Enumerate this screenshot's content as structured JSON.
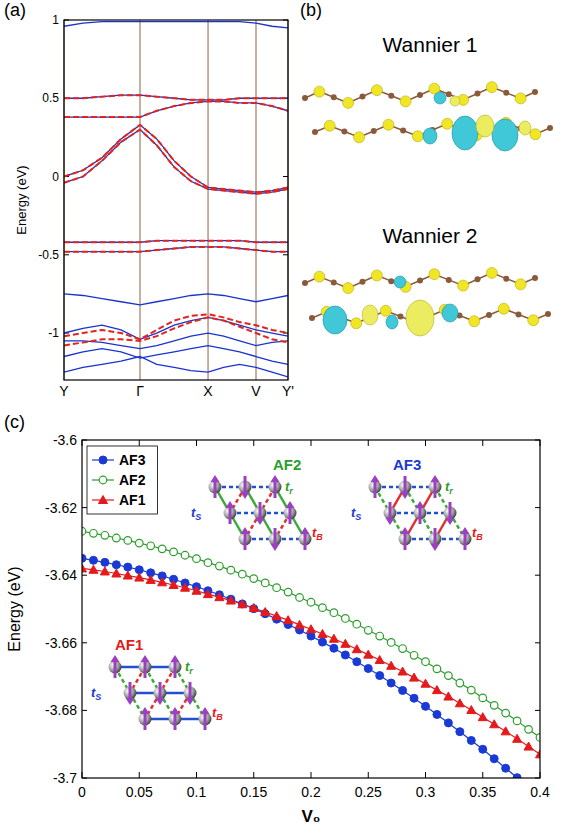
{
  "chart_data": [
    {
      "type": "line",
      "title": "(a)",
      "ylabel": "Energy (eV)",
      "x": [
        0,
        0.25,
        0.5,
        0.75,
        1,
        1.22,
        1.45,
        1.67,
        1.895,
        2.1,
        2.31,
        2.526,
        2.737,
        2.947
      ],
      "xlim": [
        0,
        2.947
      ],
      "xticks": [
        {
          "value": 0,
          "label": "Y"
        },
        {
          "value": 1,
          "label": "Γ"
        },
        {
          "value": 1.895,
          "label": "X"
        },
        {
          "value": 2.526,
          "label": "V"
        },
        {
          "value": 2.947,
          "label": "Y'"
        }
      ],
      "ylim": [
        -1.3,
        1
      ],
      "yticks": [
        -1,
        -0.5,
        0,
        0.5,
        1
      ],
      "grid": true,
      "series": [
        {
          "color": "#1a33cc",
          "line_style": "solid",
          "values": [
            0.96,
            0.98,
            0.99,
            0.99,
            0.99,
            0.99,
            0.99,
            0.99,
            0.99,
            0.99,
            0.99,
            0.98,
            0.96,
            0.95
          ]
        },
        {
          "color": "#1a33cc",
          "line_style": "solid",
          "values": [
            0.5,
            0.5,
            0.51,
            0.52,
            0.52,
            0.51,
            0.5,
            0.49,
            0.49,
            0.49,
            0.5,
            0.5,
            0.5,
            0.5
          ]
        },
        {
          "color": "#1a33cc",
          "line_style": "solid",
          "values": [
            0.38,
            0.38,
            0.38,
            0.38,
            0.38,
            0.42,
            0.45,
            0.47,
            0.48,
            0.48,
            0.47,
            0.47,
            0.45,
            0.42
          ]
        },
        {
          "color": "#1a33cc",
          "line_style": "solid",
          "values": [
            0.0,
            0.04,
            0.12,
            0.24,
            0.33,
            0.24,
            0.1,
            0.0,
            -0.07,
            -0.08,
            -0.09,
            -0.1,
            -0.09,
            -0.07
          ]
        },
        {
          "color": "#1a33cc",
          "line_style": "solid",
          "values": [
            -0.04,
            0.0,
            0.1,
            0.22,
            0.3,
            0.2,
            0.06,
            -0.03,
            -0.08,
            -0.09,
            -0.1,
            -0.11,
            -0.1,
            -0.08
          ]
        },
        {
          "color": "#1a33cc",
          "line_style": "solid",
          "values": [
            -0.42,
            -0.42,
            -0.42,
            -0.42,
            -0.42,
            -0.41,
            -0.41,
            -0.41,
            -0.41,
            -0.41,
            -0.41,
            -0.42,
            -0.42,
            -0.42
          ]
        },
        {
          "color": "#1a33cc",
          "line_style": "solid",
          "values": [
            -0.48,
            -0.48,
            -0.48,
            -0.48,
            -0.48,
            -0.47,
            -0.46,
            -0.45,
            -0.45,
            -0.45,
            -0.46,
            -0.47,
            -0.48,
            -0.48
          ]
        },
        {
          "color": "#1a33cc",
          "line_style": "solid",
          "values": [
            -0.75,
            -0.76,
            -0.78,
            -0.8,
            -0.82,
            -0.8,
            -0.78,
            -0.76,
            -0.75,
            -0.76,
            -0.78,
            -0.8,
            -0.78,
            -0.76
          ]
        },
        {
          "color": "#1a33cc",
          "line_style": "solid",
          "values": [
            -1.0,
            -0.97,
            -0.95,
            -0.98,
            -1.04,
            -1.0,
            -0.95,
            -0.92,
            -0.9,
            -0.92,
            -0.95,
            -0.98,
            -1.0,
            -1.02
          ]
        },
        {
          "color": "#1a33cc",
          "line_style": "solid",
          "values": [
            -1.05,
            -1.05,
            -1.06,
            -1.08,
            -1.1,
            -1.08,
            -1.05,
            -1.02,
            -1.0,
            -1.02,
            -1.05,
            -1.08,
            -1.06,
            -1.05
          ]
        },
        {
          "color": "#1a33cc",
          "line_style": "solid",
          "values": [
            -1.15,
            -1.12,
            -1.1,
            -1.12,
            -1.16,
            -1.14,
            -1.12,
            -1.1,
            -1.08,
            -1.1,
            -1.12,
            -1.15,
            -1.18,
            -1.2
          ]
        },
        {
          "color": "#1a33cc",
          "line_style": "solid",
          "values": [
            -1.25,
            -1.22,
            -1.2,
            -1.18,
            -1.15,
            -1.2,
            -1.22,
            -1.24,
            -1.25,
            -1.22,
            -1.2,
            -1.22,
            -1.25,
            -1.28
          ]
        },
        {
          "color": "#e3241b",
          "line_style": "dashed",
          "values": [
            0.5,
            0.5,
            0.51,
            0.52,
            0.52,
            0.51,
            0.5,
            0.49,
            0.49,
            0.49,
            0.5,
            0.5,
            0.5,
            0.5
          ]
        },
        {
          "color": "#e3241b",
          "line_style": "dashed",
          "values": [
            0.38,
            0.38,
            0.38,
            0.38,
            0.38,
            0.42,
            0.45,
            0.47,
            0.48,
            0.48,
            0.47,
            0.47,
            0.45,
            0.42
          ]
        },
        {
          "color": "#e3241b",
          "line_style": "dashed",
          "values": [
            0.0,
            0.04,
            0.12,
            0.24,
            0.33,
            0.24,
            0.1,
            0.0,
            -0.07,
            -0.08,
            -0.09,
            -0.1,
            -0.09,
            -0.07
          ]
        },
        {
          "color": "#e3241b",
          "line_style": "dashed",
          "values": [
            -0.04,
            0.0,
            0.1,
            0.22,
            0.3,
            0.2,
            0.06,
            -0.03,
            -0.08,
            -0.09,
            -0.1,
            -0.11,
            -0.1,
            -0.08
          ]
        },
        {
          "color": "#e3241b",
          "line_style": "dashed",
          "values": [
            -0.42,
            -0.42,
            -0.42,
            -0.42,
            -0.42,
            -0.41,
            -0.41,
            -0.41,
            -0.41,
            -0.41,
            -0.41,
            -0.42,
            -0.42,
            -0.42
          ]
        },
        {
          "color": "#e3241b",
          "line_style": "dashed",
          "values": [
            -0.48,
            -0.48,
            -0.48,
            -0.48,
            -0.48,
            -0.47,
            -0.46,
            -0.45,
            -0.45,
            -0.45,
            -0.46,
            -0.47,
            -0.48,
            -0.48
          ]
        },
        {
          "color": "#e3241b",
          "line_style": "dashed",
          "values": [
            -1.02,
            -1.0,
            -0.98,
            -1.0,
            -1.04,
            -0.98,
            -0.92,
            -0.89,
            -0.88,
            -0.9,
            -0.93,
            -0.95,
            -0.98,
            -1.0
          ]
        },
        {
          "color": "#e3241b",
          "line_style": "dashed",
          "values": [
            -1.08,
            -1.06,
            -1.04,
            -1.04,
            -1.05,
            -1.02,
            -0.97,
            -0.93,
            -0.9,
            -0.92,
            -0.96,
            -1.0,
            -1.04,
            -1.06
          ]
        }
      ]
    },
    {
      "type": "line",
      "title": "(c)",
      "xlabel": "V₀",
      "ylabel": "Energy (eV)",
      "x": [
        0,
        0.01,
        0.02,
        0.03,
        0.04,
        0.05,
        0.06,
        0.07,
        0.08,
        0.09,
        0.1,
        0.11,
        0.12,
        0.13,
        0.14,
        0.15,
        0.16,
        0.17,
        0.18,
        0.19,
        0.2,
        0.21,
        0.22,
        0.23,
        0.24,
        0.25,
        0.26,
        0.27,
        0.28,
        0.29,
        0.3,
        0.31,
        0.32,
        0.33,
        0.34,
        0.35,
        0.36,
        0.37,
        0.38,
        0.39,
        0.4
      ],
      "xlim": [
        0,
        0.4
      ],
      "xticks": [
        0,
        0.05,
        0.1,
        0.15,
        0.2,
        0.25,
        0.3,
        0.35,
        0.4
      ],
      "ylim": [
        -3.7,
        -3.6
      ],
      "yticks": [
        -3.7,
        -3.68,
        -3.66,
        -3.64,
        -3.62,
        -3.6
      ],
      "legend": "upper left",
      "series": [
        {
          "name": "AF3",
          "color": "#1a3ad6",
          "marker": "circle",
          "line_style": "solid",
          "values": [
            -3.635,
            -3.6356,
            -3.6362,
            -3.6369,
            -3.6376,
            -3.6384,
            -3.6393,
            -3.6402,
            -3.6412,
            -3.6423,
            -3.6434,
            -3.6446,
            -3.6458,
            -3.6471,
            -3.6485,
            -3.6499,
            -3.6514,
            -3.653,
            -3.6546,
            -3.6562,
            -3.658,
            -3.6598,
            -3.6616,
            -3.6636,
            -3.6656,
            -3.6676,
            -3.6697,
            -3.6719,
            -3.6741,
            -3.6764,
            -3.6788,
            -3.6812,
            -3.6837,
            -3.6863,
            -3.6889,
            -3.6915,
            -3.6943,
            -3.6971,
            -3.6999,
            null,
            null
          ]
        },
        {
          "name": "AF2",
          "color": "#2c9e2c",
          "marker": "open_circle",
          "line_style": "solid",
          "values": [
            -3.627,
            -3.6276,
            -3.6282,
            -3.629,
            -3.6297,
            -3.6305,
            -3.6313,
            -3.6322,
            -3.6331,
            -3.6341,
            -3.6351,
            -3.6363,
            -3.6373,
            -3.6385,
            -3.6397,
            -3.641,
            -3.6423,
            -3.6437,
            -3.645,
            -3.6466,
            -3.648,
            -3.6496,
            -3.6511,
            -3.6528,
            -3.6545,
            -3.6563,
            -3.658,
            -3.6599,
            -3.6617,
            -3.6637,
            -3.6656,
            -3.6677,
            -3.6697,
            -3.6719,
            -3.674,
            -3.6763,
            -3.6785,
            -3.6808,
            -3.6831,
            -3.6856,
            -3.688
          ]
        },
        {
          "name": "AF1",
          "color": "#e41a1c",
          "marker": "triangle",
          "line_style": "solid",
          "values": [
            -3.638,
            -3.6384,
            -3.6389,
            -3.6395,
            -3.6401,
            -3.6407,
            -3.6414,
            -3.6421,
            -3.6429,
            -3.6437,
            -3.6446,
            -3.6456,
            -3.6465,
            -3.6475,
            -3.6486,
            -3.6497,
            -3.6509,
            -3.6521,
            -3.6533,
            -3.6547,
            -3.656,
            -3.6574,
            -3.6588,
            -3.6603,
            -3.6619,
            -3.6635,
            -3.6651,
            -3.6668,
            -3.6685,
            -3.6703,
            -3.6721,
            -3.674,
            -3.6759,
            -3.6779,
            -3.6799,
            -3.682,
            -3.6841,
            -3.6862,
            -3.6884,
            -3.6907,
            -3.693
          ]
        }
      ],
      "insets": [
        {
          "label": "AF2",
          "color": "#2c9e2c",
          "hoppings": [
            {
              "text": "t",
              "sub": "r"
            },
            {
              "text": "t",
              "sub": "B"
            },
            {
              "text": "t",
              "sub": "S"
            }
          ]
        },
        {
          "label": "AF3",
          "color": "#1a3ad6",
          "hoppings": [
            {
              "text": "t",
              "sub": "r"
            },
            {
              "text": "t",
              "sub": "B"
            },
            {
              "text": "t",
              "sub": "S"
            }
          ]
        },
        {
          "label": "AF1",
          "color": "#e41a1c",
          "hoppings": [
            {
              "text": "t",
              "sub": "r"
            },
            {
              "text": "t",
              "sub": "B"
            },
            {
              "text": "t",
              "sub": "S"
            }
          ]
        }
      ]
    }
  ],
  "diagram": {
    "title": "(b)",
    "images": [
      {
        "label": "Wannier 1"
      },
      {
        "label": "Wannier 2"
      }
    ]
  }
}
